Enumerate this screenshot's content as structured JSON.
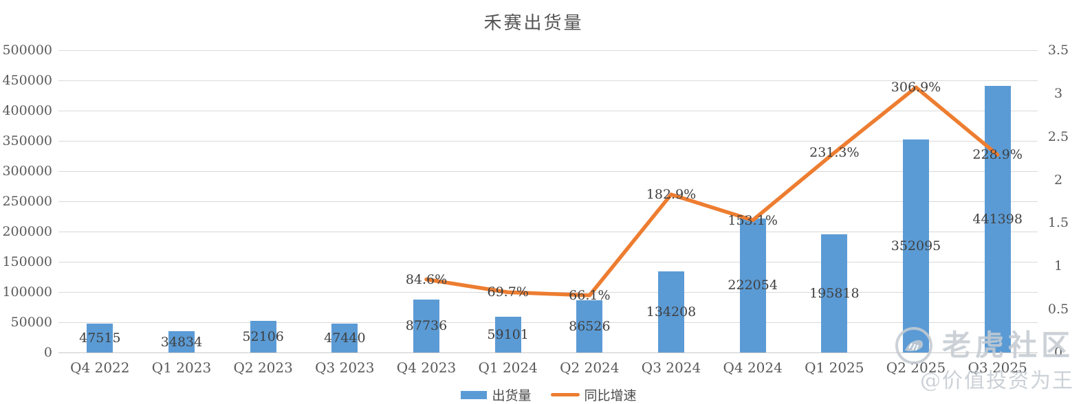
{
  "title": "禾赛出货量",
  "legend": {
    "shipments_label": "出货量",
    "growth_label": "同比增速"
  },
  "watermark": {
    "brand": "老虎社区",
    "handle": "@价值投资为王"
  },
  "colors": {
    "bar": "#5B9BD5",
    "line": "#ED7D31",
    "grid": "#D9D9D9",
    "axis_text": "#595959",
    "data_label_text": "#3F3F3F"
  },
  "chart_data": {
    "type": "bar",
    "title": "禾赛出货量",
    "categories": [
      "Q4 2022",
      "Q1 2023",
      "Q2 2023",
      "Q3 2023",
      "Q4 2023",
      "Q1 2024",
      "Q2 2024",
      "Q3 2024",
      "Q4 2024",
      "Q1 2025",
      "Q2 2025",
      "Q3 2025"
    ],
    "series": [
      {
        "name": "出货量",
        "type": "bar",
        "axis": "left",
        "color": "#5B9BD5",
        "values": [
          47515,
          34834,
          52106,
          47440,
          87736,
          59101,
          86526,
          134208,
          222054,
          195818,
          352095,
          441398
        ],
        "value_labels": [
          "47515",
          "34834",
          "52106",
          "47440",
          "87736",
          "59101",
          "86526",
          "134208",
          "222054",
          "195818",
          "352095",
          "441398"
        ]
      },
      {
        "name": "同比增速",
        "type": "line",
        "axis": "right",
        "color": "#ED7D31",
        "values": [
          null,
          null,
          null,
          null,
          0.846,
          0.697,
          0.661,
          1.829,
          1.531,
          2.313,
          3.069,
          2.289
        ],
        "point_labels": [
          null,
          null,
          null,
          null,
          "84.6%",
          "69.7%",
          "66.1%",
          "182.9%",
          "153.1%",
          "231.3%",
          "306.9%",
          "228.9%"
        ]
      }
    ],
    "left_axis": {
      "min": 0,
      "max": 500000,
      "step": 50000,
      "tick_labels": [
        "0",
        "50000",
        "100000",
        "150000",
        "200000",
        "250000",
        "300000",
        "350000",
        "400000",
        "450000",
        "500000"
      ]
    },
    "right_axis": {
      "min": 0,
      "max": 3.5,
      "step": 0.5,
      "tick_labels": [
        "0",
        "0.5",
        "1",
        "1.5",
        "2",
        "2.5",
        "3",
        "3.5"
      ]
    },
    "grid": true,
    "legend_position": "bottom"
  }
}
